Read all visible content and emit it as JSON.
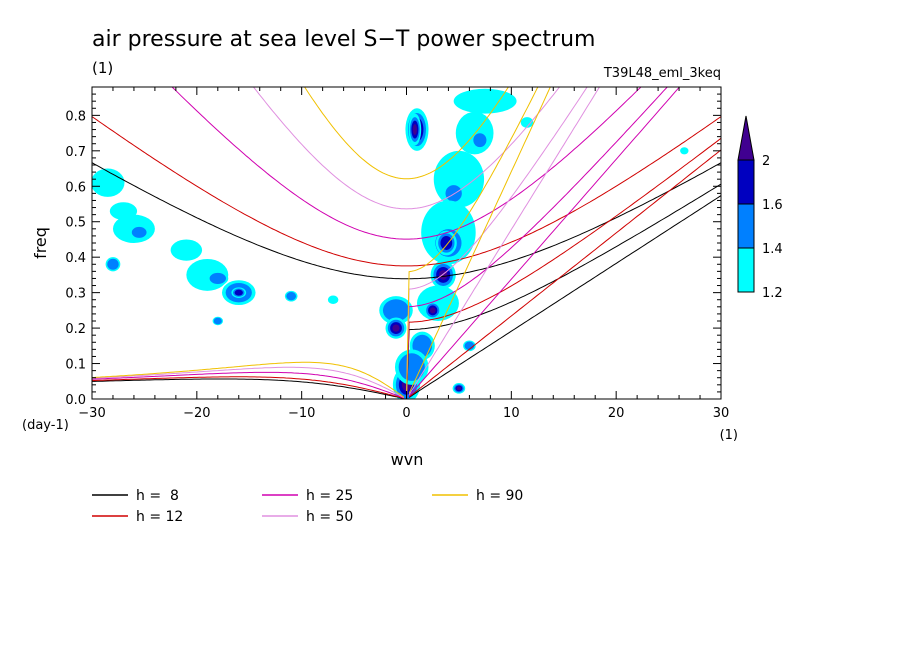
{
  "chart_data": {
    "type": "heatmap",
    "title": "air pressure at sea level S−T power spectrum",
    "subtitle_left": "(1)",
    "subtitle_right": "T39L48_eml_3keq",
    "xlabel": "wvn",
    "xunit": "(1)",
    "ylabel": "freq",
    "yunit": "(day-1)",
    "xlim": [
      -30,
      30
    ],
    "ylim": [
      0,
      0.88
    ],
    "xticks": [
      -30,
      -20,
      -10,
      0,
      10,
      20,
      30
    ],
    "yticks": [
      0.0,
      0.1,
      0.2,
      0.3,
      0.4,
      0.5,
      0.6,
      0.7,
      0.8
    ],
    "colorbar": {
      "levels": [
        1.2,
        1.4,
        1.6,
        2
      ],
      "colors": [
        "#00ffff",
        "#0080ff",
        "#0000c0",
        "#400090"
      ],
      "extend": "max"
    },
    "contour_blobs": [
      {
        "x": 1.0,
        "y": 0.76,
        "rx": 1.1,
        "ry": 0.06,
        "level": 3
      },
      {
        "x": 0.8,
        "y": 0.76,
        "rx": 0.6,
        "ry": 0.045,
        "level": 4
      },
      {
        "x": 7.5,
        "y": 0.84,
        "rx": 3.0,
        "ry": 0.035,
        "level": 1
      },
      {
        "x": 6.5,
        "y": 0.75,
        "rx": 1.8,
        "ry": 0.06,
        "level": 1
      },
      {
        "x": 7.0,
        "y": 0.73,
        "rx": 0.8,
        "ry": 0.025,
        "level": 2
      },
      {
        "x": 5.0,
        "y": 0.62,
        "rx": 2.4,
        "ry": 0.08,
        "level": 1
      },
      {
        "x": 4.5,
        "y": 0.58,
        "rx": 1.0,
        "ry": 0.03,
        "level": 2
      },
      {
        "x": 4.0,
        "y": 0.47,
        "rx": 2.6,
        "ry": 0.09,
        "level": 1
      },
      {
        "x": 4.0,
        "y": 0.44,
        "rx": 1.6,
        "ry": 0.05,
        "level": 2
      },
      {
        "x": 3.8,
        "y": 0.44,
        "rx": 1.0,
        "ry": 0.035,
        "level": 3
      },
      {
        "x": 3.5,
        "y": 0.35,
        "rx": 1.2,
        "ry": 0.04,
        "level": 4
      },
      {
        "x": 3.0,
        "y": 0.27,
        "rx": 2.0,
        "ry": 0.05,
        "level": 1
      },
      {
        "x": 2.5,
        "y": 0.25,
        "rx": 0.8,
        "ry": 0.025,
        "level": 4
      },
      {
        "x": -1.0,
        "y": 0.25,
        "rx": 1.6,
        "ry": 0.04,
        "level": 2
      },
      {
        "x": -1.0,
        "y": 0.2,
        "rx": 1.0,
        "ry": 0.03,
        "level": 4
      },
      {
        "x": 1.5,
        "y": 0.15,
        "rx": 1.2,
        "ry": 0.04,
        "level": 2
      },
      {
        "x": 0.0,
        "y": 0.04,
        "rx": 1.3,
        "ry": 0.05,
        "level": 4
      },
      {
        "x": 0.5,
        "y": 0.09,
        "rx": 1.6,
        "ry": 0.05,
        "level": 2
      },
      {
        "x": 5.0,
        "y": 0.03,
        "rx": 0.6,
        "ry": 0.015,
        "level": 4
      },
      {
        "x": 6.0,
        "y": 0.15,
        "rx": 0.6,
        "ry": 0.015,
        "level": 2
      },
      {
        "x": -26.0,
        "y": 0.48,
        "rx": 2.0,
        "ry": 0.04,
        "level": 1
      },
      {
        "x": -25.5,
        "y": 0.47,
        "rx": 0.9,
        "ry": 0.02,
        "level": 2
      },
      {
        "x": -28.5,
        "y": 0.61,
        "rx": 1.6,
        "ry": 0.04,
        "level": 1
      },
      {
        "x": -28.0,
        "y": 0.38,
        "rx": 0.7,
        "ry": 0.02,
        "level": 2
      },
      {
        "x": -21.0,
        "y": 0.42,
        "rx": 1.5,
        "ry": 0.03,
        "level": 1
      },
      {
        "x": -19.0,
        "y": 0.35,
        "rx": 2.0,
        "ry": 0.045,
        "level": 1
      },
      {
        "x": -18.0,
        "y": 0.34,
        "rx": 1.0,
        "ry": 0.02,
        "level": 2
      },
      {
        "x": -16.0,
        "y": 0.3,
        "rx": 1.6,
        "ry": 0.035,
        "level": 2
      },
      {
        "x": -16.0,
        "y": 0.3,
        "rx": 0.7,
        "ry": 0.015,
        "level": 3
      },
      {
        "x": -11.0,
        "y": 0.29,
        "rx": 0.6,
        "ry": 0.015,
        "level": 2
      },
      {
        "x": -18.0,
        "y": 0.22,
        "rx": 0.5,
        "ry": 0.012,
        "level": 2
      },
      {
        "x": -7.0,
        "y": 0.28,
        "rx": 0.5,
        "ry": 0.012,
        "level": 1
      },
      {
        "x": -27.0,
        "y": 0.53,
        "rx": 1.3,
        "ry": 0.025,
        "level": 1
      },
      {
        "x": 11.5,
        "y": 0.78,
        "rx": 0.6,
        "ry": 0.015,
        "level": 1
      },
      {
        "x": 26.5,
        "y": 0.7,
        "rx": 0.4,
        "ry": 0.01,
        "level": 1
      }
    ],
    "dispersion_curves": [
      {
        "h": 8,
        "label": "h =  8",
        "color": "#000000"
      },
      {
        "h": 12,
        "label": "h = 12",
        "color": "#d00000"
      },
      {
        "h": 25,
        "label": "h = 25",
        "color": "#d000b0"
      },
      {
        "h": 50,
        "label": "h = 50",
        "color": "#e090e0"
      },
      {
        "h": 90,
        "label": "h = 90",
        "color": "#f0c000"
      }
    ]
  }
}
